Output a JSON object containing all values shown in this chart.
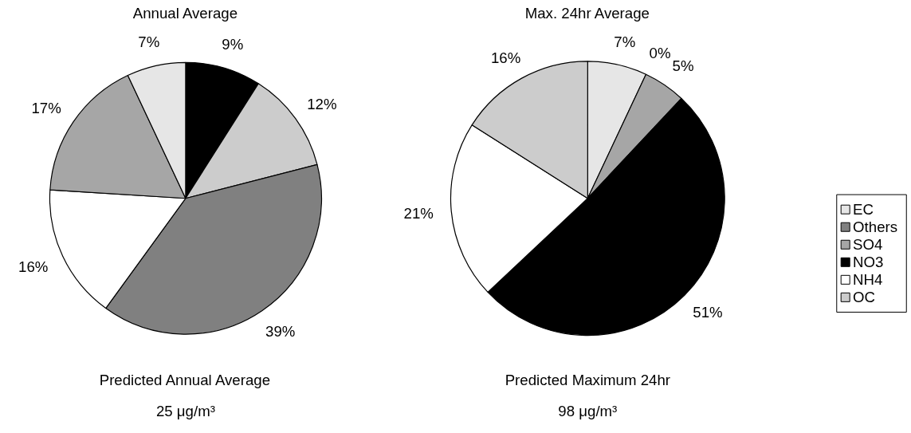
{
  "chart_data": [
    {
      "type": "pie",
      "title": "Annual Average",
      "categories": [
        null,
        null,
        null,
        null,
        null,
        null
      ],
      "values": [
        9,
        12,
        39,
        16,
        17,
        7
      ],
      "colors": [
        "#000000",
        "#cccccc",
        "#808080",
        "#ffffff",
        "#a6a6a6",
        "#e6e6e6"
      ],
      "value_labels": [
        "9%",
        "12%",
        "39%",
        "16%",
        "17%",
        "7%"
      ],
      "annotations": [
        "Predicted Annual Average",
        "25 μg/m³"
      ],
      "legend": false
    },
    {
      "type": "pie",
      "title": "Max. 24hr Average",
      "categories": [
        "EC",
        "Others",
        "SO4",
        "NO3",
        "NH4",
        "OC"
      ],
      "values": [
        7,
        0,
        5,
        51,
        21,
        16
      ],
      "colors": [
        "#e6e6e6",
        "#808080",
        "#a6a6a6",
        "#000000",
        "#ffffff",
        "#cccccc"
      ],
      "value_labels": [
        "7%",
        "0%",
        "5%",
        "51%",
        "21%",
        "16%"
      ],
      "annotations": [
        "Predicted Maximum 24hr",
        "98 μg/m³"
      ],
      "legend": "right"
    }
  ]
}
